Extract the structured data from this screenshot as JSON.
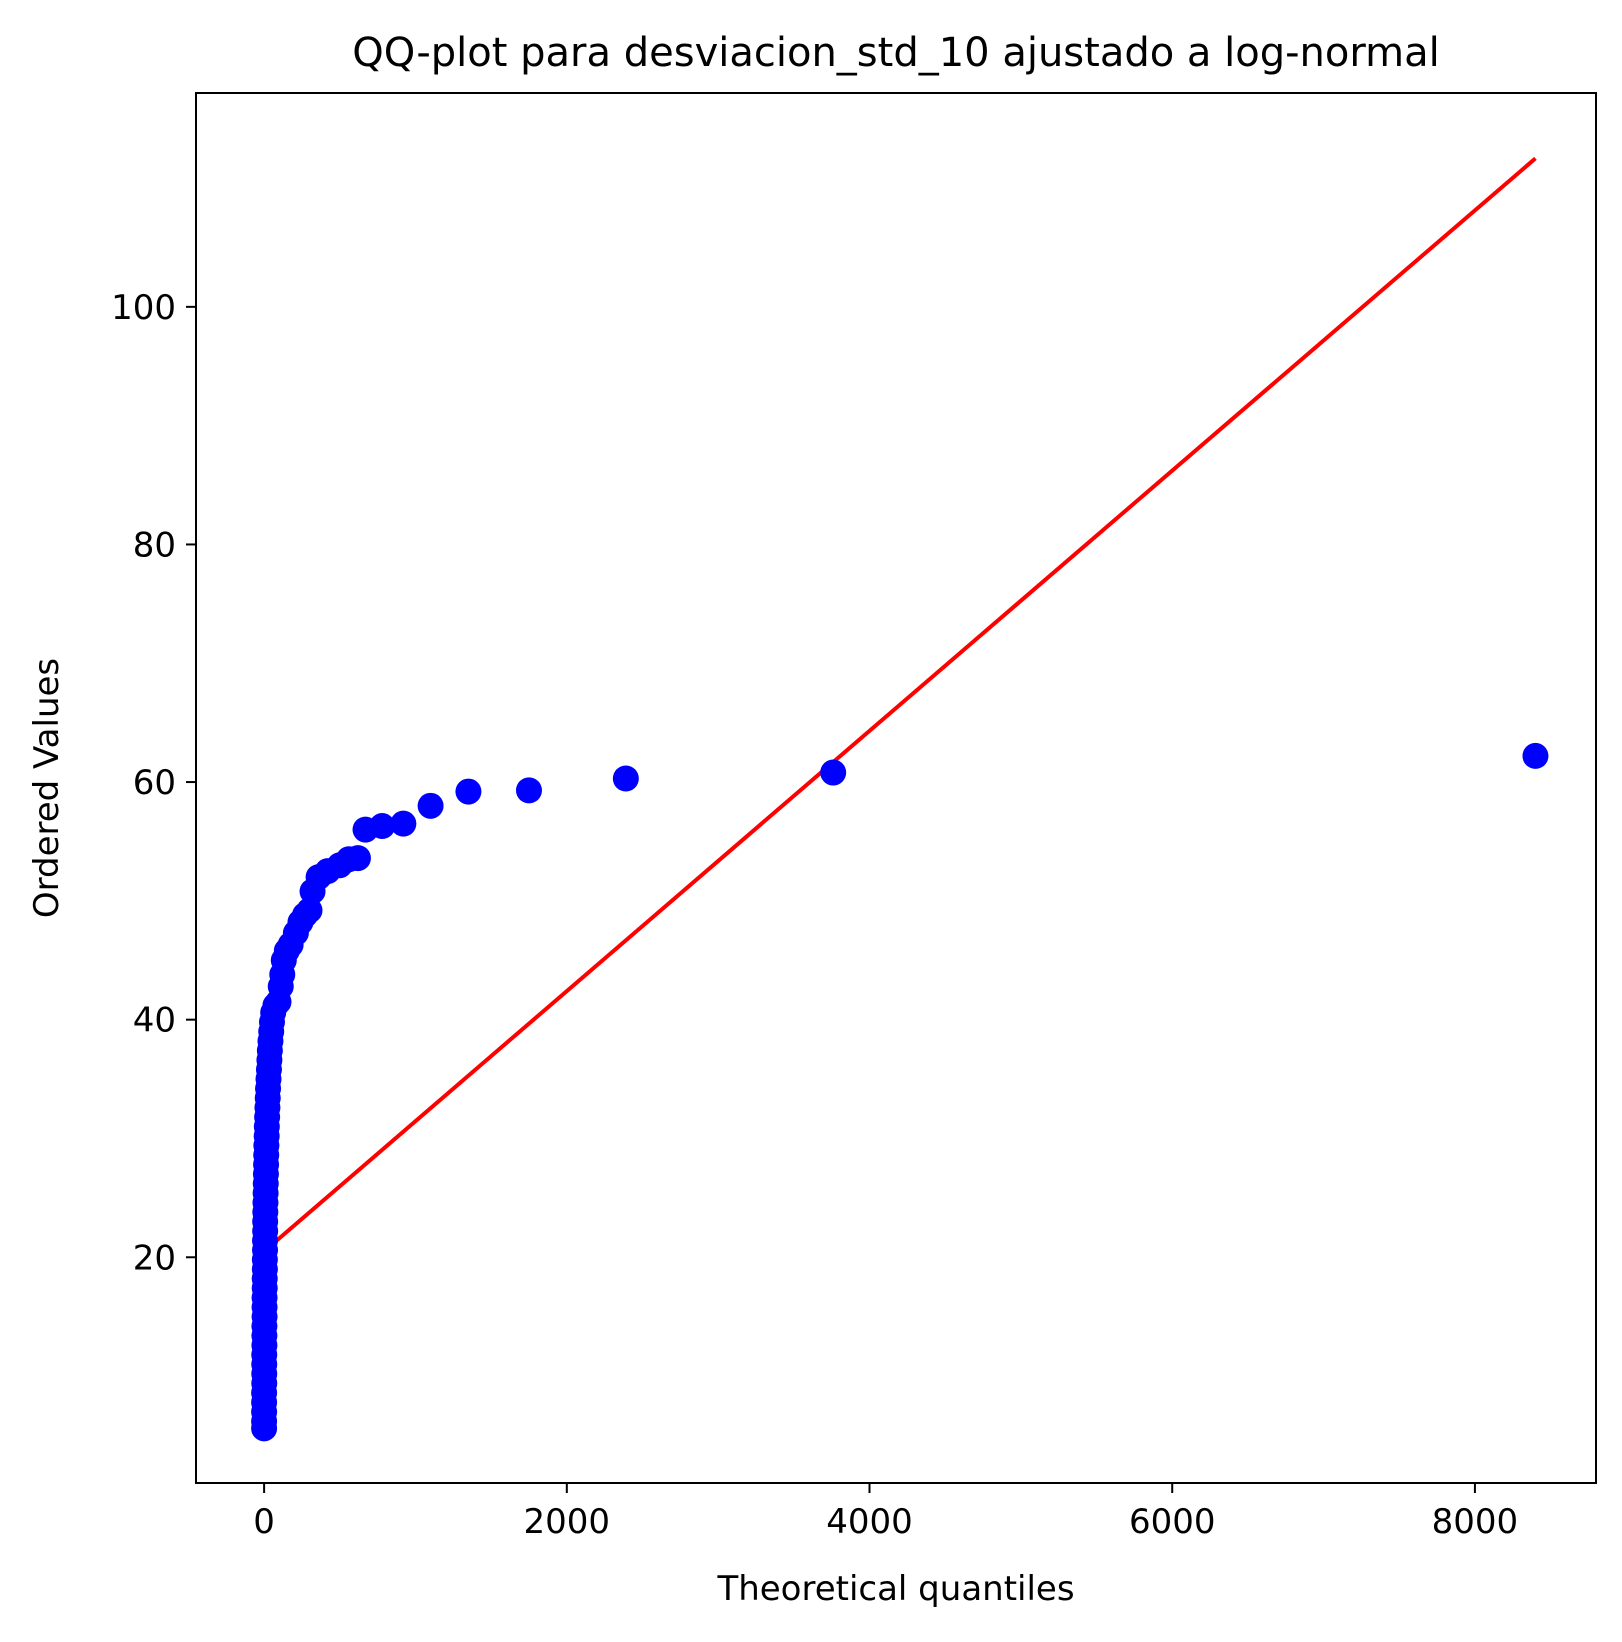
{
  "chart_data": {
    "type": "scatter",
    "title": "QQ-plot para desviacion_std_10 ajustado a log-normal",
    "xlabel": "Theoretical quantiles",
    "ylabel": "Ordered Values",
    "xlim": [
      -450,
      8800
    ],
    "ylim": [
      1,
      118
    ],
    "xticks": [
      0,
      2000,
      4000,
      6000,
      8000
    ],
    "xtick_labels": [
      "0",
      "2000",
      "4000",
      "6000",
      "8000"
    ],
    "yticks": [
      20,
      40,
      60,
      80,
      100
    ],
    "ytick_labels": [
      "20",
      "40",
      "60",
      "80",
      "100"
    ],
    "grid": false,
    "legend": "none",
    "colors": {
      "points": "#0000ff",
      "fit_line": "#ff0000"
    },
    "series": [
      {
        "points": [
          [
            0,
            5.6
          ],
          [
            0,
            6.2
          ],
          [
            0,
            7.0
          ],
          [
            0,
            7.8
          ],
          [
            0,
            8.6
          ],
          [
            1,
            9.4
          ],
          [
            1,
            10.2
          ],
          [
            1,
            11.0
          ],
          [
            1,
            11.8
          ],
          [
            2,
            12.6
          ],
          [
            2,
            13.4
          ],
          [
            2,
            14.2
          ],
          [
            3,
            15.0
          ],
          [
            3,
            15.8
          ],
          [
            3,
            16.6
          ],
          [
            4,
            17.4
          ],
          [
            4,
            18.2
          ],
          [
            5,
            19.0
          ],
          [
            5,
            19.8
          ],
          [
            6,
            20.6
          ],
          [
            6,
            21.4
          ],
          [
            7,
            22.2
          ],
          [
            7,
            23.0
          ],
          [
            8,
            23.8
          ],
          [
            9,
            24.6
          ],
          [
            10,
            25.4
          ],
          [
            11,
            26.2
          ],
          [
            12,
            27.0
          ],
          [
            13,
            27.8
          ],
          [
            14,
            28.6
          ],
          [
            15,
            29.4
          ],
          [
            17,
            30.2
          ],
          [
            18,
            31.0
          ],
          [
            20,
            31.8
          ],
          [
            22,
            32.6
          ],
          [
            24,
            33.4
          ],
          [
            26,
            34.2
          ],
          [
            29,
            35.0
          ],
          [
            32,
            35.8
          ],
          [
            35,
            36.6
          ],
          [
            38,
            37.4
          ],
          [
            42,
            38.2
          ],
          [
            47,
            39.0
          ],
          [
            52,
            39.8
          ],
          [
            60,
            40.6
          ],
          [
            75,
            41.2
          ],
          [
            95,
            41.5
          ],
          [
            110,
            42.8
          ],
          [
            120,
            43.8
          ],
          [
            130,
            45.0
          ],
          [
            150,
            45.8
          ],
          [
            175,
            46.3
          ],
          [
            210,
            47.3
          ],
          [
            240,
            48.2
          ],
          [
            270,
            48.8
          ],
          [
            300,
            49.2
          ],
          [
            320,
            50.8
          ],
          [
            360,
            52.0
          ],
          [
            420,
            52.5
          ],
          [
            500,
            53.0
          ],
          [
            560,
            53.5
          ],
          [
            620,
            53.6
          ],
          [
            670,
            56.0
          ],
          [
            780,
            56.3
          ],
          [
            920,
            56.5
          ],
          [
            1100,
            58.0
          ],
          [
            1350,
            59.2
          ],
          [
            1750,
            59.3
          ],
          [
            2390,
            60.3
          ],
          [
            3760,
            60.8
          ],
          [
            8400,
            62.2
          ]
        ]
      }
    ],
    "fit_line": {
      "x": [
        0,
        8400
      ],
      "y": [
        20.5,
        112.5
      ]
    }
  }
}
